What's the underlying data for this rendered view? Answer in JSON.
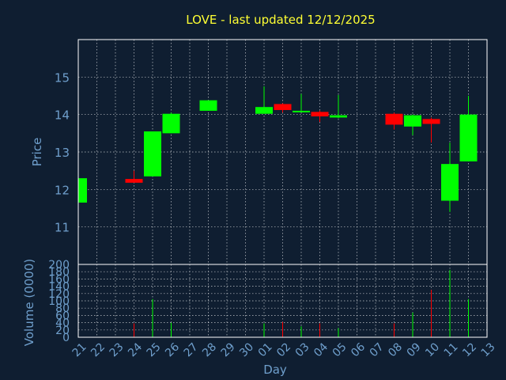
{
  "chart_data": {
    "type": "candlestick",
    "title": "LOVE - last updated 12/12/2025",
    "xlabel": "Day",
    "price_ylabel": "Price",
    "volume_ylabel": "Volume (0000)",
    "x_ticks": [
      "21",
      "22",
      "23",
      "24",
      "25",
      "26",
      "27",
      "28",
      "29",
      "30",
      "01",
      "02",
      "03",
      "04",
      "05",
      "06",
      "07",
      "08",
      "09",
      "10",
      "11",
      "12",
      "13"
    ],
    "price_ylim": [
      10.0,
      16.0
    ],
    "price_yticks": [
      11,
      12,
      13,
      14,
      15
    ],
    "volume_ylim": [
      0,
      200
    ],
    "volume_yticks": [
      0,
      20,
      40,
      60,
      80,
      100,
      120,
      140,
      160,
      180,
      200
    ],
    "grid": true,
    "colors": {
      "background": "#0f1e31",
      "up": "#00ff00",
      "down": "#ff0000",
      "grid": "#ffffff",
      "title": "#ffff33",
      "axis_text": "#6f9fcc"
    },
    "candles": [
      {
        "day": "21",
        "open": 11.65,
        "high": 12.3,
        "low": 11.65,
        "close": 12.3,
        "volume": 0
      },
      {
        "day": "24",
        "open": 12.28,
        "high": 12.5,
        "low": 12.2,
        "close": 12.18,
        "volume": 38
      },
      {
        "day": "25",
        "open": 12.35,
        "high": 13.55,
        "low": 12.35,
        "close": 13.55,
        "volume": 105
      },
      {
        "day": "26",
        "open": 13.5,
        "high": 14.05,
        "low": 13.5,
        "close": 14.02,
        "volume": 40
      },
      {
        "day": "28",
        "open": 14.1,
        "high": 14.38,
        "low": 14.1,
        "close": 14.38,
        "volume": 0
      },
      {
        "day": "01",
        "open": 14.02,
        "high": 14.75,
        "low": 14.02,
        "close": 14.2,
        "volume": 38
      },
      {
        "day": "02",
        "open": 14.28,
        "high": 14.3,
        "low": 14.05,
        "close": 14.12,
        "volume": 42
      },
      {
        "day": "03",
        "open": 14.1,
        "high": 14.55,
        "low": 14.1,
        "close": 14.1,
        "volume": 30
      },
      {
        "day": "04",
        "open": 14.07,
        "high": 14.1,
        "low": 13.8,
        "close": 13.95,
        "volume": 38
      },
      {
        "day": "05",
        "open": 13.92,
        "high": 14.52,
        "low": 13.9,
        "close": 13.98,
        "volume": 25
      },
      {
        "day": "08",
        "open": 14.02,
        "high": 14.05,
        "low": 13.6,
        "close": 13.73,
        "volume": 38
      },
      {
        "day": "09",
        "open": 13.68,
        "high": 14.0,
        "low": 13.45,
        "close": 13.98,
        "volume": 68
      },
      {
        "day": "10",
        "open": 13.88,
        "high": 13.92,
        "low": 13.25,
        "close": 13.75,
        "volume": 130
      },
      {
        "day": "11",
        "open": 11.7,
        "high": 13.25,
        "low": 11.4,
        "close": 12.68,
        "volume": 185
      },
      {
        "day": "12",
        "open": 12.75,
        "high": 14.5,
        "low": 12.75,
        "close": 14.0,
        "volume": 105
      }
    ]
  }
}
